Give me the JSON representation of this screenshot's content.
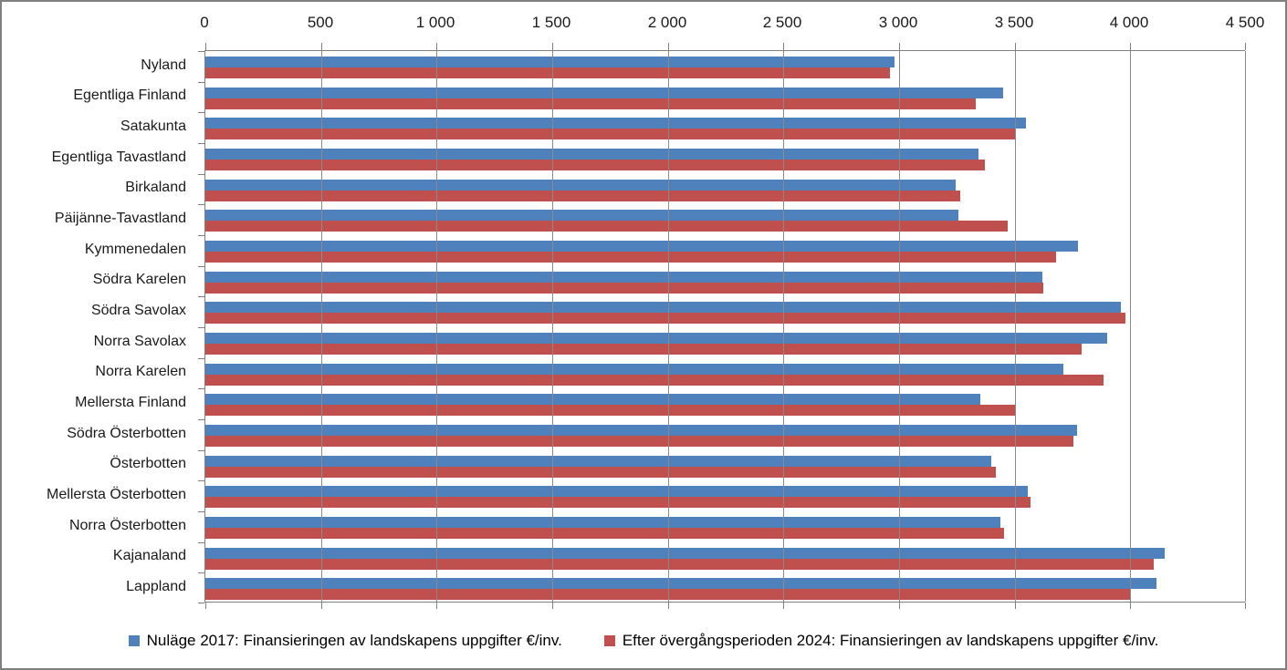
{
  "window": {
    "background": "#FFFFFF",
    "border_color": "#7F7F7F"
  },
  "chart_data": {
    "type": "bar",
    "orientation": "horizontal",
    "categories": [
      "Nyland",
      "Egentliga Finland",
      "Satakunta",
      "Egentliga Tavastland",
      "Birkaland",
      "Päijänne-Tavastland",
      "Kymmenedalen",
      "Södra Karelen",
      "Södra Savolax",
      "Norra Savolax",
      "Norra Karelen",
      "Mellersta Finland",
      "Södra Österbotten",
      "Österbotten",
      "Mellersta Österbotten",
      "Norra Österbotten",
      "Kajanaland",
      "Lappland"
    ],
    "series": [
      {
        "name": "Nuläge 2017: Finansieringen av landskapens uppgifter €/inv.",
        "color": "#4F81BD",
        "values": [
          2980,
          3450,
          3550,
          3345,
          3245,
          3255,
          3775,
          3620,
          3960,
          3900,
          3710,
          3350,
          3770,
          3400,
          3555,
          3440,
          4150,
          4115
        ]
      },
      {
        "name": "Efter övergångsperioden 2024: Finansieringen av landskapens uppgifter €/inv.",
        "color": "#C0504D",
        "values": [
          2960,
          3330,
          3500,
          3370,
          3265,
          3470,
          3680,
          3625,
          3980,
          3790,
          3885,
          3500,
          3755,
          3420,
          3570,
          3455,
          4100,
          4000
        ]
      }
    ],
    "xlim": [
      0,
      4500
    ],
    "x_ticks": [
      0,
      500,
      1000,
      1500,
      2000,
      2500,
      3000,
      3500,
      4000,
      4500
    ],
    "x_tick_labels": [
      "0",
      "500",
      "1 000",
      "1 500",
      "2 000",
      "2 500",
      "3 000",
      "3 500",
      "4 000",
      "4 500"
    ],
    "grid": true,
    "gridline_color": "#8A8A8A",
    "axis_color": "#7F7F7F",
    "text_color": "#1A1A1A",
    "legend_position": "bottom"
  }
}
